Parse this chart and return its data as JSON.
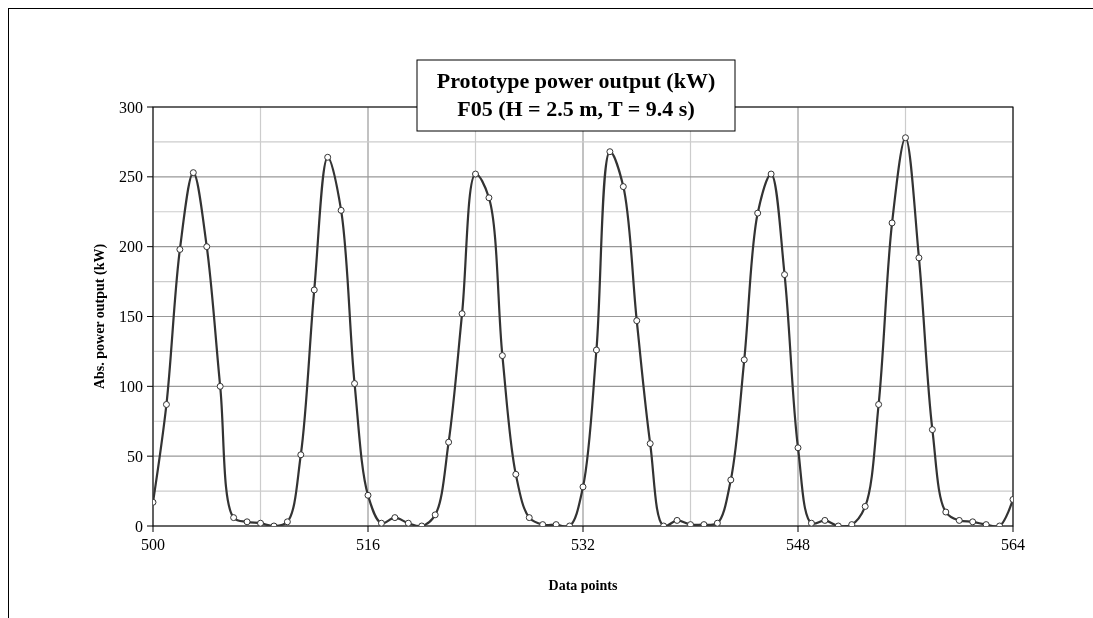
{
  "chart_data": {
    "type": "line",
    "title": "Prototype power output (kW)\nF05 (H = 2.5 m, T = 9.4 s)",
    "xlabel": "Data points",
    "ylabel": "Abs. power output (kW)",
    "x": [
      500,
      501,
      502,
      503,
      504,
      505,
      506,
      507,
      508,
      509,
      510,
      511,
      512,
      513,
      514,
      515,
      516,
      517,
      518,
      519,
      520,
      521,
      522,
      523,
      524,
      525,
      526,
      527,
      528,
      529,
      530,
      531,
      532,
      533,
      534,
      535,
      536,
      537,
      538,
      539,
      540,
      541,
      542,
      543,
      544,
      545,
      546,
      547,
      548,
      549,
      550,
      551,
      552,
      553,
      554,
      555,
      556,
      557,
      558,
      559,
      560,
      561,
      562,
      563,
      564
    ],
    "series": [
      {
        "color": "#333333",
        "values": [
          17,
          87,
          198,
          253,
          200,
          100,
          6,
          3,
          2,
          0,
          3,
          51,
          169,
          264,
          226,
          102,
          22,
          2,
          6,
          2,
          0,
          8,
          60,
          152,
          252,
          235,
          122,
          37,
          6,
          1,
          1,
          0,
          28,
          126,
          268,
          243,
          147,
          59,
          0,
          4,
          1,
          1,
          2,
          33,
          119,
          224,
          252,
          180,
          56,
          2,
          4,
          0,
          1,
          14,
          87,
          217,
          278,
          192,
          69,
          10,
          4,
          3,
          1,
          0,
          19
        ]
      }
    ],
    "xlim": [
      500,
      564
    ],
    "xticks": [
      500,
      {
        "value": 508,
        "label": null
      },
      516,
      {
        "value": 524,
        "label": null
      },
      532,
      {
        "value": 540,
        "label": null
      },
      548,
      {
        "value": 556,
        "label": null
      },
      564
    ],
    "ylim": [
      0,
      300
    ],
    "yticks": [
      0,
      {
        "value": 25,
        "label": null
      },
      50,
      {
        "value": 75,
        "label": null
      },
      100,
      {
        "value": 125,
        "label": null
      },
      150,
      {
        "value": 175,
        "label": null
      },
      200,
      {
        "value": 225,
        "label": null
      },
      250,
      {
        "value": 275,
        "label": null
      },
      300
    ],
    "grid": true,
    "marker": "circle",
    "line_style": "solid"
  }
}
